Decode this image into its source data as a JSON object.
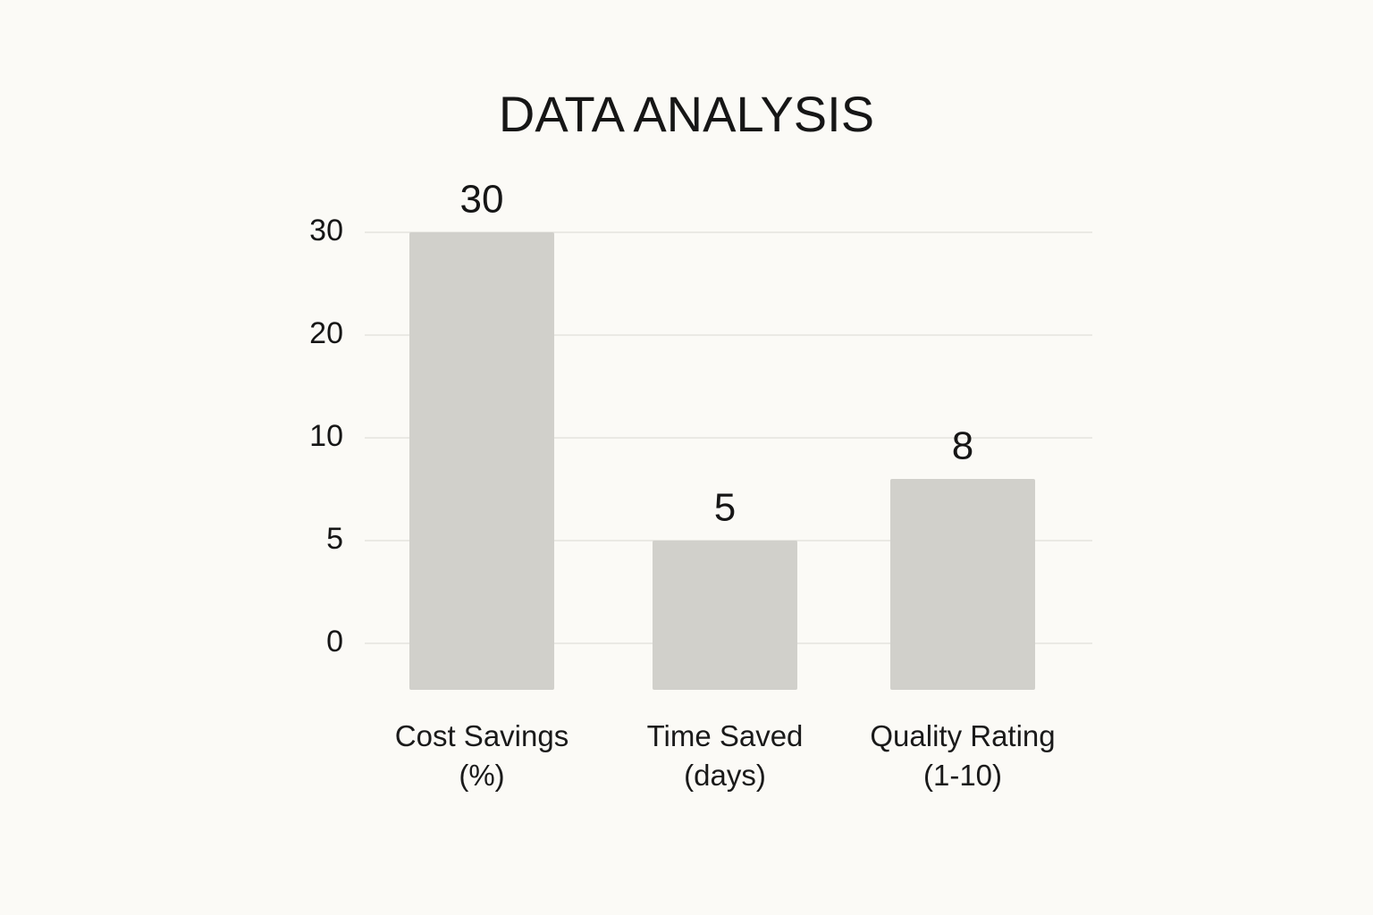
{
  "chart_data": {
    "type": "bar",
    "title": "DATA ANALYSIS",
    "categories": [
      "Cost Savings (%)",
      "Time Saved (days)",
      "Quality Rating (1-10)"
    ],
    "values": [
      30,
      5,
      8
    ],
    "color": "#d1d0cb",
    "yticks": [
      0,
      5,
      10,
      20,
      30
    ],
    "ylim": [
      0,
      30
    ],
    "grid": true
  }
}
